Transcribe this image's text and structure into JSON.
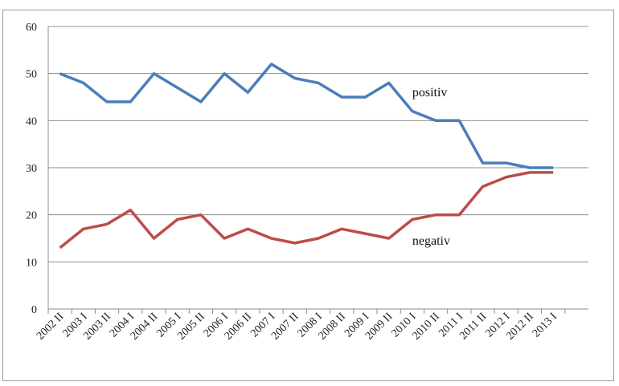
{
  "chart_data": {
    "type": "line",
    "categories": [
      "2002 II",
      "2003 I",
      "2003 II",
      "2004 I",
      "2004 II",
      "2005 I",
      "2005 II",
      "2006 I",
      "2006 II",
      "2007 I",
      "2007 II",
      "2008 I",
      "2008 II",
      "2009 I",
      "2009 II",
      "2010 I",
      "2010 II",
      "2011 I",
      "2011 II",
      "2012 I",
      "2012 II",
      "2013 I"
    ],
    "series": [
      {
        "name": "positiv",
        "color": "#4a7ebb",
        "values": [
          50,
          48,
          44,
          44,
          50,
          47,
          44,
          50,
          46,
          52,
          49,
          48,
          45,
          45,
          48,
          42,
          40,
          40,
          31,
          31,
          30,
          30
        ]
      },
      {
        "name": "negativ",
        "color": "#be4b48",
        "values": [
          13,
          17,
          18,
          21,
          15,
          19,
          20,
          15,
          17,
          15,
          14,
          15,
          17,
          16,
          15,
          19,
          20,
          20,
          26,
          28,
          29,
          29
        ]
      }
    ],
    "ylim": [
      0,
      60
    ],
    "yticks": [
      0,
      10,
      20,
      30,
      40,
      50,
      60
    ],
    "grid": true,
    "legend": "none (labels placed on chart)"
  }
}
